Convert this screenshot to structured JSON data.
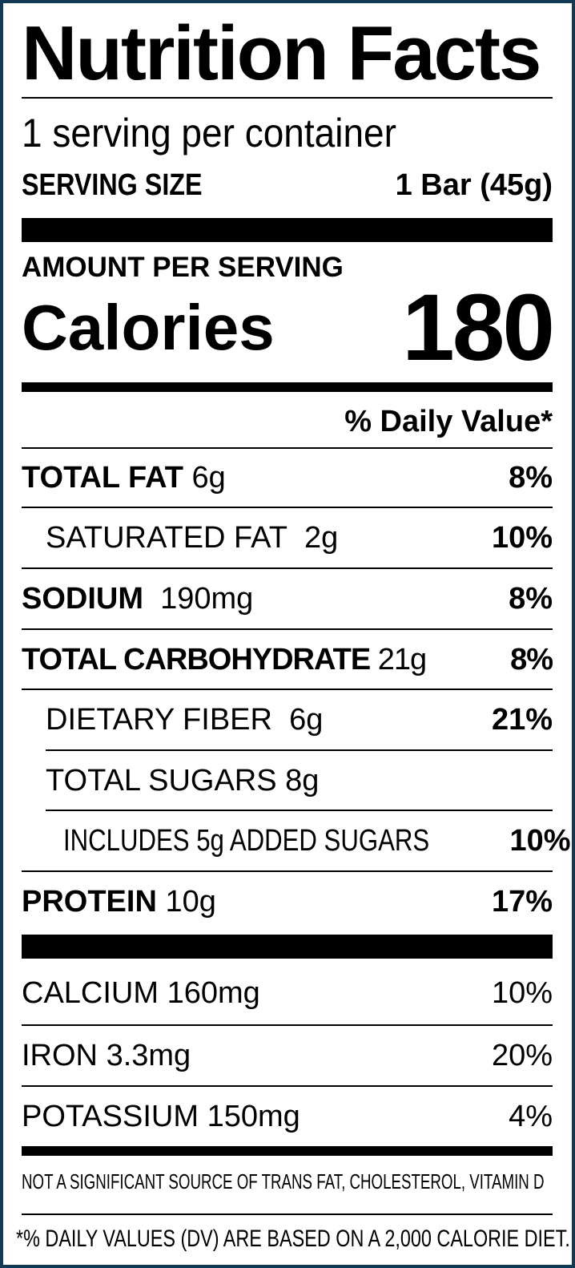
{
  "title": "Nutrition Facts",
  "servings_per_container": "1 serving per container",
  "serving_size": {
    "label": "SERVING SIZE",
    "value": "1 Bar (45g)"
  },
  "amount_per_serving": "AMOUNT PER SERVING",
  "calories": {
    "label": "Calories",
    "value": "180"
  },
  "daily_value_header": "% Daily Value*",
  "nutrients": [
    {
      "name": "TOTAL FAT",
      "amount": "6g",
      "dv": "8%"
    },
    {
      "name": "SATURATED FAT",
      "amount": "2g",
      "dv": "10%"
    },
    {
      "name": "SODIUM",
      "amount": "190mg",
      "dv": "8%"
    },
    {
      "name": "TOTAL CARBOHYDRATE",
      "amount": "21g",
      "dv": "8%"
    },
    {
      "name": "DIETARY FIBER",
      "amount": "6g",
      "dv": "21%"
    },
    {
      "name": "TOTAL SUGARS",
      "amount": "8g",
      "dv": ""
    },
    {
      "name": "INCLUDES 5g ADDED SUGARS",
      "amount": "",
      "dv": "10%"
    },
    {
      "name": "PROTEIN",
      "amount": "10g",
      "dv": "17%"
    }
  ],
  "minerals": [
    {
      "name": "CALCIUM",
      "amount": "160mg",
      "dv": "10%"
    },
    {
      "name": "IRON",
      "amount": "3.3mg",
      "dv": "20%"
    },
    {
      "name": "POTASSIUM",
      "amount": "150mg",
      "dv": "4%"
    }
  ],
  "footnote_not_significant": "NOT A SIGNIFICANT SOURCE OF TRANS FAT, CHOLESTEROL, VITAMIN D",
  "footnote_dv": "*% DAILY VALUES (DV) ARE BASED ON A 2,000 CALORIE DIET.",
  "colors": {
    "border": "#123a55",
    "text": "#000000"
  }
}
